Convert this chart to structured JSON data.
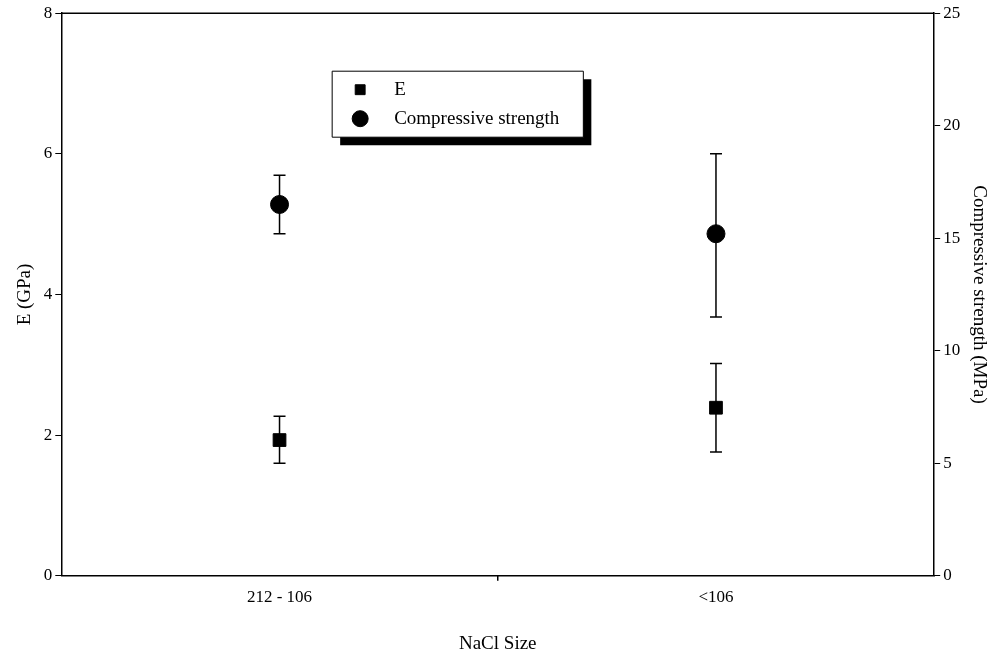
{
  "chart_data": {
    "type": "scatter",
    "xlabel": "NaCl Size",
    "ylabel": "E (GPa)",
    "y2label": "Compressive strength (MPa)",
    "categories": [
      "212 - 106",
      "<106"
    ],
    "series": [
      {
        "name": "E",
        "color": "#000000",
        "marker": "square",
        "values": [
          1.93,
          2.39
        ],
        "errors": [
          [
            1.6,
            2.27
          ],
          [
            1.76,
            3.02
          ]
        ]
      },
      {
        "name": "Compressive strength",
        "color": "#000000",
        "marker": "circle",
        "axis": "y2",
        "values": [
          16.5,
          15.2
        ],
        "errors": [
          [
            15.2,
            17.8
          ],
          [
            11.5,
            18.75
          ]
        ]
      }
    ],
    "ylim": [
      0,
      8
    ],
    "yticks": [
      0,
      2,
      4,
      6,
      8
    ],
    "y2lim": [
      0,
      25
    ],
    "y2ticks": [
      0,
      5,
      10,
      15,
      20,
      25
    ],
    "grid": false,
    "legend": "top"
  }
}
